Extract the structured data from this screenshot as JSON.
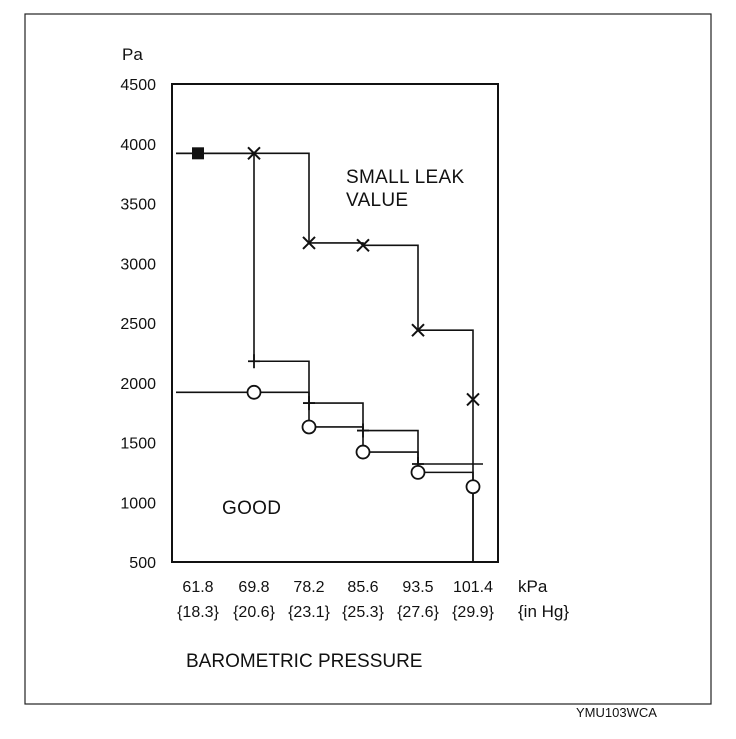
{
  "figure_code": "YMU103WCA",
  "chart_data": {
    "type": "line",
    "title": "",
    "xlabel": "BAROMETRIC PRESSURE",
    "ylabel": "Pa",
    "x_unit_primary": "kPa",
    "x_unit_secondary": "{in Hg}",
    "categories": [
      "61.8",
      "69.8",
      "78.2",
      "85.6",
      "93.5",
      "101.4"
    ],
    "categories_secondary": [
      "{18.3}",
      "{20.6}",
      "{23.1}",
      "{25.3}",
      "{27.6}",
      "{29.9}"
    ],
    "yticks": [
      "4500",
      "4000",
      "3500",
      "3000",
      "2500",
      "2000",
      "1500",
      "1000",
      "500"
    ],
    "ylim": [
      500,
      4500
    ],
    "grid": false,
    "series": [
      {
        "marker": "x",
        "values": [
          3920,
          3920,
          3170,
          3150,
          2440,
          1860
        ]
      },
      {
        "marker": "+",
        "values": [
          3920,
          2180,
          1830,
          1600,
          1320,
          null
        ]
      },
      {
        "marker": "circle",
        "values": [
          1920,
          1920,
          1630,
          1420,
          1250,
          1130
        ]
      }
    ],
    "annotations": [
      {
        "text": "SMALL LEAK",
        "region": "upper-right"
      },
      {
        "text": "VALUE",
        "region": "upper-right"
      },
      {
        "text": "GOOD",
        "region": "lower-left"
      }
    ]
  }
}
